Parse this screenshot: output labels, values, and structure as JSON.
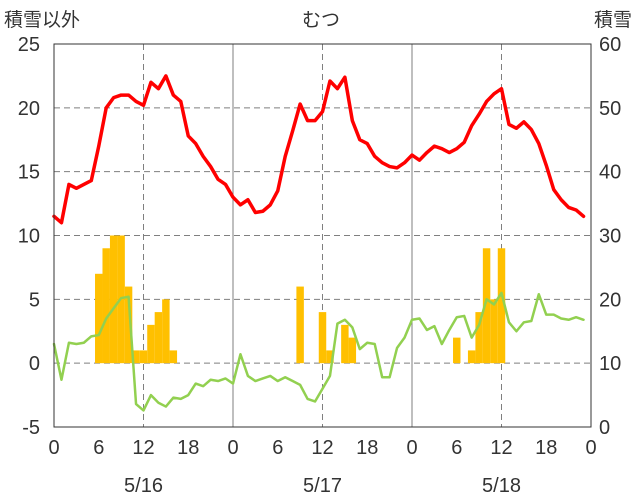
{
  "chart_data": {
    "type": "line",
    "title": "むつ",
    "ylabel_left": "積雪以外",
    "ylabel_right": "積雪",
    "ylim_left": [
      -5,
      25
    ],
    "yticks_left": [
      "-5",
      "0",
      "5",
      "10",
      "15",
      "20",
      "25"
    ],
    "ylim_right": [
      0,
      60
    ],
    "yticks_right": [
      "0",
      "10",
      "20",
      "30",
      "40",
      "50",
      "60"
    ],
    "xlim_hours": [
      0,
      71
    ],
    "xtick_labels": [
      "0",
      "6",
      "12",
      "18",
      "0",
      "6",
      "12",
      "18",
      "0",
      "6",
      "12",
      "18",
      "0"
    ],
    "day_labels": [
      "5/16",
      "5/17",
      "5/18"
    ],
    "grid": true,
    "series": [
      {
        "kind": "bar",
        "axis": "left",
        "color": "#ffc000",
        "x": [
          0,
          1,
          2,
          3,
          4,
          5,
          6,
          7,
          8,
          9,
          10,
          11,
          12,
          13,
          14,
          15,
          16,
          17,
          18,
          19,
          20,
          21,
          22,
          23,
          24,
          25,
          26,
          27,
          28,
          29,
          30,
          31,
          32,
          33,
          34,
          35,
          36,
          37,
          38,
          39,
          40,
          41,
          42,
          43,
          44,
          45,
          46,
          47,
          48,
          49,
          50,
          51,
          52,
          53,
          54,
          55,
          56,
          57,
          58,
          59,
          60,
          61,
          62,
          63,
          64,
          65,
          66,
          67,
          68,
          69,
          70,
          71
        ],
        "values": [
          0,
          0,
          0,
          0,
          0,
          0,
          7,
          9,
          10,
          10,
          6,
          1,
          1,
          3,
          4,
          5,
          1,
          0,
          0,
          0,
          0,
          0,
          0,
          0,
          0,
          0,
          0,
          0,
          0,
          0,
          0,
          0,
          0,
          6,
          0,
          0,
          4,
          1,
          0,
          3,
          2,
          0,
          0,
          0,
          0,
          0,
          0,
          0,
          0,
          0,
          0,
          0,
          0,
          0,
          2,
          0,
          1,
          4,
          9,
          5,
          9,
          0,
          0,
          0,
          0,
          0,
          0,
          0,
          0,
          0,
          0,
          0
        ]
      },
      {
        "kind": "line",
        "axis": "left",
        "color": "#ff0000",
        "x": [
          0,
          1,
          2,
          3,
          4,
          5,
          6,
          7,
          8,
          9,
          10,
          11,
          12,
          13,
          14,
          15,
          16,
          17,
          18,
          19,
          20,
          21,
          22,
          23,
          24,
          25,
          26,
          27,
          28,
          29,
          30,
          31,
          32,
          33,
          34,
          35,
          36,
          37,
          38,
          39,
          40,
          41,
          42,
          43,
          44,
          45,
          46,
          47,
          48,
          49,
          50,
          51,
          52,
          53,
          54,
          55,
          56,
          57,
          58,
          59,
          60,
          61,
          62,
          63,
          64,
          65,
          66,
          67,
          68,
          69,
          70,
          71
        ],
        "values": [
          11.5,
          11,
          14,
          13.7,
          14,
          14.3,
          17,
          20,
          20.8,
          21,
          21,
          20.5,
          20.2,
          22,
          21.5,
          22.5,
          21,
          20.5,
          17.8,
          17.2,
          16.2,
          15.4,
          14.4,
          14,
          13,
          12.4,
          12.8,
          11.8,
          11.9,
          12.4,
          13.5,
          16.2,
          18.2,
          20.3,
          19,
          19,
          19.7,
          22.1,
          21.5,
          22.4,
          19,
          17.5,
          17.2,
          16.2,
          15.7,
          15.4,
          15.3,
          15.7,
          16.3,
          15.9,
          16.5,
          17,
          16.8,
          16.5,
          16.8,
          17.3,
          18.6,
          19.5,
          20.5,
          21.1,
          21.5,
          18.7,
          18.4,
          18.9,
          18.3,
          17.2,
          15.5,
          13.6,
          12.8,
          12.2,
          12,
          11.5
        ]
      },
      {
        "kind": "line",
        "axis": "left",
        "color": "#92d050",
        "x": [
          0,
          1,
          2,
          3,
          4,
          5,
          6,
          7,
          8,
          9,
          10,
          11,
          12,
          13,
          14,
          15,
          16,
          17,
          18,
          19,
          20,
          21,
          22,
          23,
          24,
          25,
          26,
          27,
          28,
          29,
          30,
          31,
          32,
          33,
          34,
          35,
          36,
          37,
          38,
          39,
          40,
          41,
          42,
          43,
          44,
          45,
          46,
          47,
          48,
          49,
          50,
          51,
          52,
          53,
          54,
          55,
          56,
          57,
          58,
          59,
          60,
          61,
          62,
          63,
          64,
          65,
          66,
          67,
          68,
          69,
          70,
          71
        ],
        "values": [
          1.5,
          -1.3,
          1.6,
          1.5,
          1.6,
          2.1,
          2.2,
          3.5,
          4.3,
          5.1,
          5.2,
          -3.2,
          -3.7,
          -2.5,
          -3.1,
          -3.4,
          -2.7,
          -2.8,
          -2.5,
          -1.6,
          -1.8,
          -1.3,
          -1.4,
          -1.2,
          -1.6,
          0.7,
          -1,
          -1.4,
          -1.2,
          -1,
          -1.4,
          -1.1,
          -1.4,
          -1.7,
          -2.8,
          -3,
          -2,
          -1,
          3.1,
          3.4,
          2.8,
          1.1,
          1.6,
          1.5,
          -1.1,
          -1.1,
          1.2,
          2,
          3.4,
          3.5,
          2.6,
          2.9,
          1.5,
          2.6,
          3.6,
          3.7,
          2,
          3,
          5,
          4.6,
          5.5,
          3.2,
          2.5,
          3.2,
          3.3,
          5.4,
          3.8,
          3.8,
          3.5,
          3.4,
          3.6,
          3.4
        ]
      }
    ]
  }
}
